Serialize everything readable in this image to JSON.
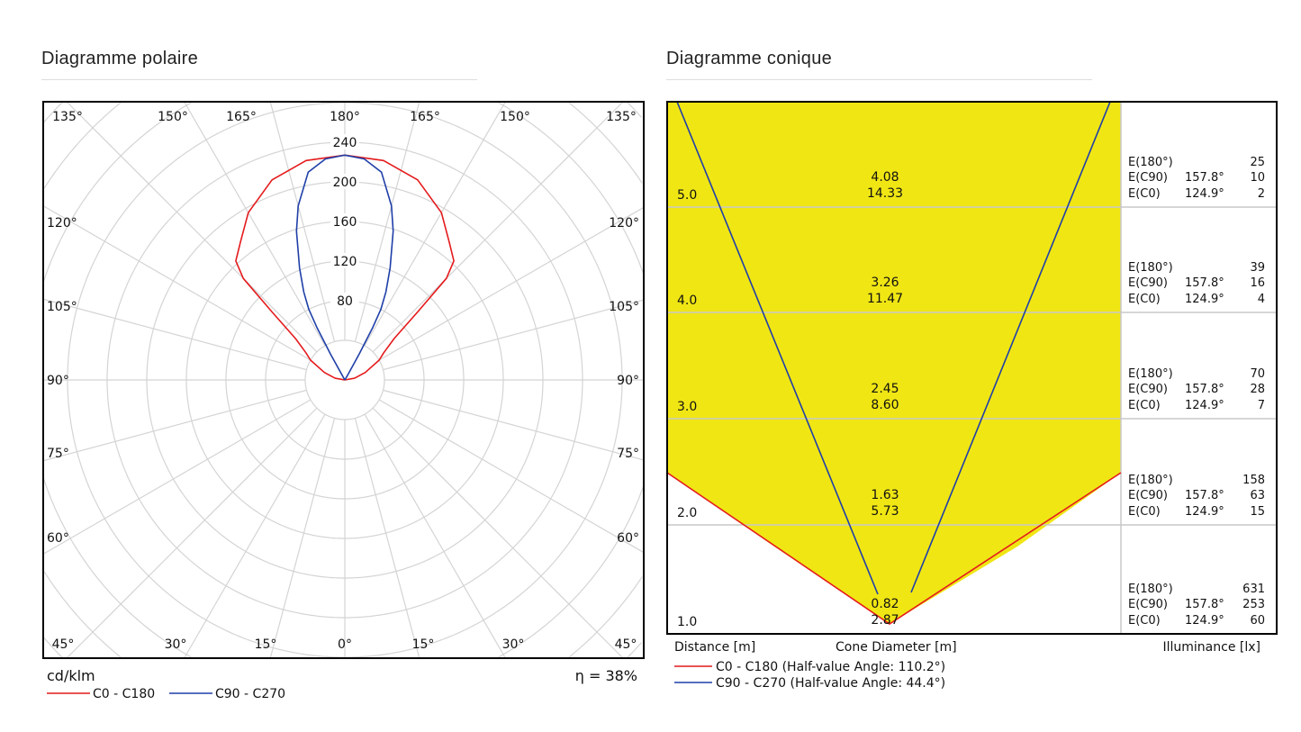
{
  "headers": {
    "polar": "Diagramme polaire",
    "cone": "Diagramme conique"
  },
  "chart_data": [
    {
      "type": "polar",
      "unit_label": "cd/klm",
      "efficiency": "η = 38%",
      "radial_ticks": [
        80,
        120,
        160,
        200,
        240
      ],
      "angle_labels_top": [
        "135°",
        "150°",
        "165°",
        "180°",
        "165°",
        "150°",
        "135°"
      ],
      "angle_labels_side": [
        "120°",
        "105°",
        "90°",
        "75°",
        "60°"
      ],
      "angle_labels_bottom": [
        "45°",
        "30°",
        "15°",
        "0°",
        "15°",
        "30°",
        "45°"
      ],
      "grid": true,
      "legend_placement": "bottom-left",
      "series": [
        {
          "name": "C0 - C180",
          "color": "#e41a1c",
          "gamma": [
            180,
            170,
            160,
            150,
            143,
            137.5,
            135,
            133,
            130,
            125,
            120,
            110,
            100,
            90
          ],
          "values": [
            227,
            225,
            215,
            195,
            175,
            163,
            145,
            100,
            65,
            48,
            40,
            22,
            10,
            0
          ]
        },
        {
          "name": "C90 - C270",
          "color": "#1f3fa8",
          "gamma": [
            180,
            175,
            170,
            165,
            162,
            158,
            155,
            153,
            152,
            151,
            150,
            145,
            90
          ],
          "values": [
            227,
            224,
            213,
            182,
            158,
            122,
            98,
            80,
            60,
            30,
            5,
            0,
            0
          ]
        }
      ]
    },
    {
      "type": "table",
      "title": "Diagramme conique",
      "xlabel": "Cone Diameter [m]",
      "ylabel": "Distance [m]",
      "table_label": "Illuminance [lx]",
      "fill_color": "#f0e614",
      "legend": [
        {
          "label": "C0 - C180 (Half-value Angle: 110.2°)",
          "color": "#e41a1c"
        },
        {
          "label": "C90 - C270 (Half-value Angle: 44.4°)",
          "color": "#1f3fa8"
        }
      ],
      "rows": [
        {
          "distance": "5.0",
          "d_c90": "4.08",
          "d_c0": "14.33",
          "e180_label": "E(180°)",
          "e180": "25",
          "ec90_label": "E(C90)",
          "ec90_angle": "157.8°",
          "ec90": "10",
          "ec0_label": "E(C0)",
          "ec0_angle": "124.9°",
          "ec0": "2"
        },
        {
          "distance": "4.0",
          "d_c90": "3.26",
          "d_c0": "11.47",
          "e180_label": "E(180°)",
          "e180": "39",
          "ec90_label": "E(C90)",
          "ec90_angle": "157.8°",
          "ec90": "16",
          "ec0_label": "E(C0)",
          "ec0_angle": "124.9°",
          "ec0": "4"
        },
        {
          "distance": "3.0",
          "d_c90": "2.45",
          "d_c0": "8.60",
          "e180_label": "E(180°)",
          "e180": "70",
          "ec90_label": "E(C90)",
          "ec90_angle": "157.8°",
          "ec90": "28",
          "ec0_label": "E(C0)",
          "ec0_angle": "124.9°",
          "ec0": "7"
        },
        {
          "distance": "2.0",
          "d_c90": "1.63",
          "d_c0": "5.73",
          "e180_label": "E(180°)",
          "e180": "158",
          "ec90_label": "E(C90)",
          "ec90_angle": "157.8°",
          "ec90": "63",
          "ec0_label": "E(C0)",
          "ec0_angle": "124.9°",
          "ec0": "15"
        },
        {
          "distance": "1.0",
          "d_c90": "0.82",
          "d_c0": "2.87",
          "e180_label": "E(180°)",
          "e180": "631",
          "ec90_label": "E(C90)",
          "ec90_angle": "157.8°",
          "ec90": "253",
          "ec0_label": "E(C0)",
          "ec0_angle": "124.9°",
          "ec0": "60"
        }
      ]
    }
  ]
}
